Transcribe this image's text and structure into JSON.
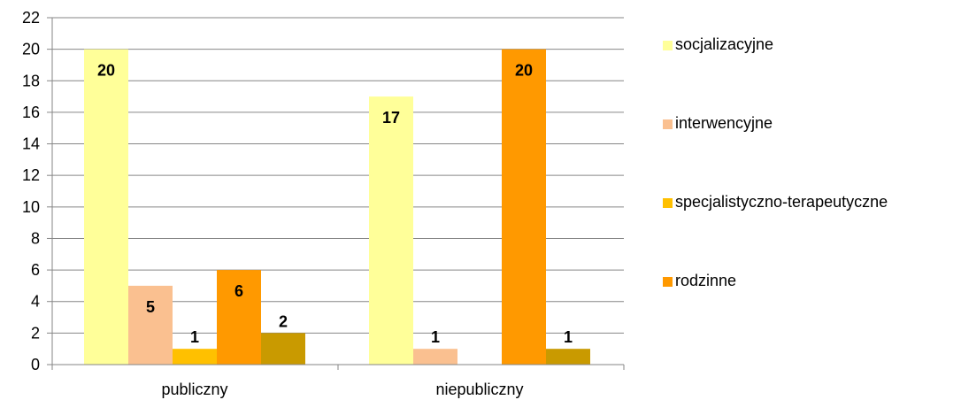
{
  "chart_data": {
    "type": "bar",
    "title": "",
    "xlabel": "",
    "ylabel": "",
    "categories": [
      "publiczny",
      "niepubliczny"
    ],
    "ylim": [
      0,
      22
    ],
    "ytick_step": 2,
    "grid": "horizontal",
    "legend_position": "right",
    "series": [
      {
        "name": "socjalizacyjne",
        "color": "#FFFF99",
        "values": [
          20,
          17
        ]
      },
      {
        "name": "interwencyjne",
        "color": "#FAC090",
        "values": [
          5,
          1
        ]
      },
      {
        "name": "specjalistyczno-terapeutyczne",
        "color": "#FFC000",
        "values": [
          1,
          null
        ]
      },
      {
        "name": "rodzinne",
        "color": "#FF9900",
        "values": [
          6,
          20
        ]
      },
      {
        "name": "",
        "color": "#C99A00",
        "values": [
          2,
          1
        ]
      }
    ]
  }
}
